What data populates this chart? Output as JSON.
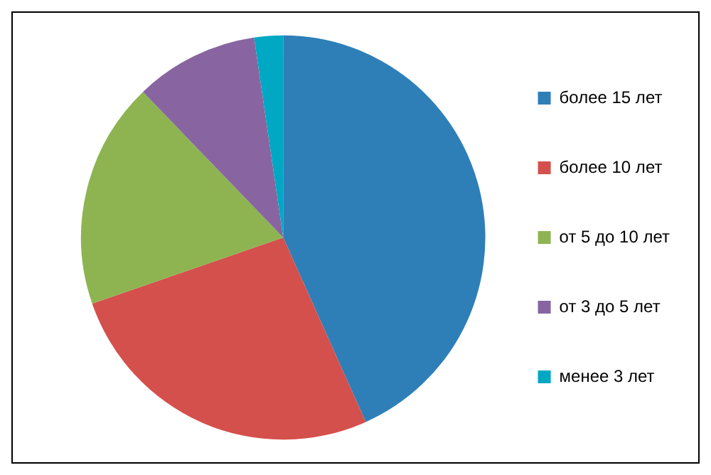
{
  "chart_data": {
    "type": "pie",
    "categories": [
      "более 15 лет",
      "более 10 лет",
      "от 5 до 10 лет",
      "от 3 до 5 лет",
      "менее 3 лет"
    ],
    "values": [
      43.3,
      26.4,
      18.1,
      9.9,
      2.3
    ],
    "colors": [
      "#2e7fb8",
      "#d4504c",
      "#8db451",
      "#8865a0",
      "#00a8c4"
    ],
    "legend": "right"
  }
}
